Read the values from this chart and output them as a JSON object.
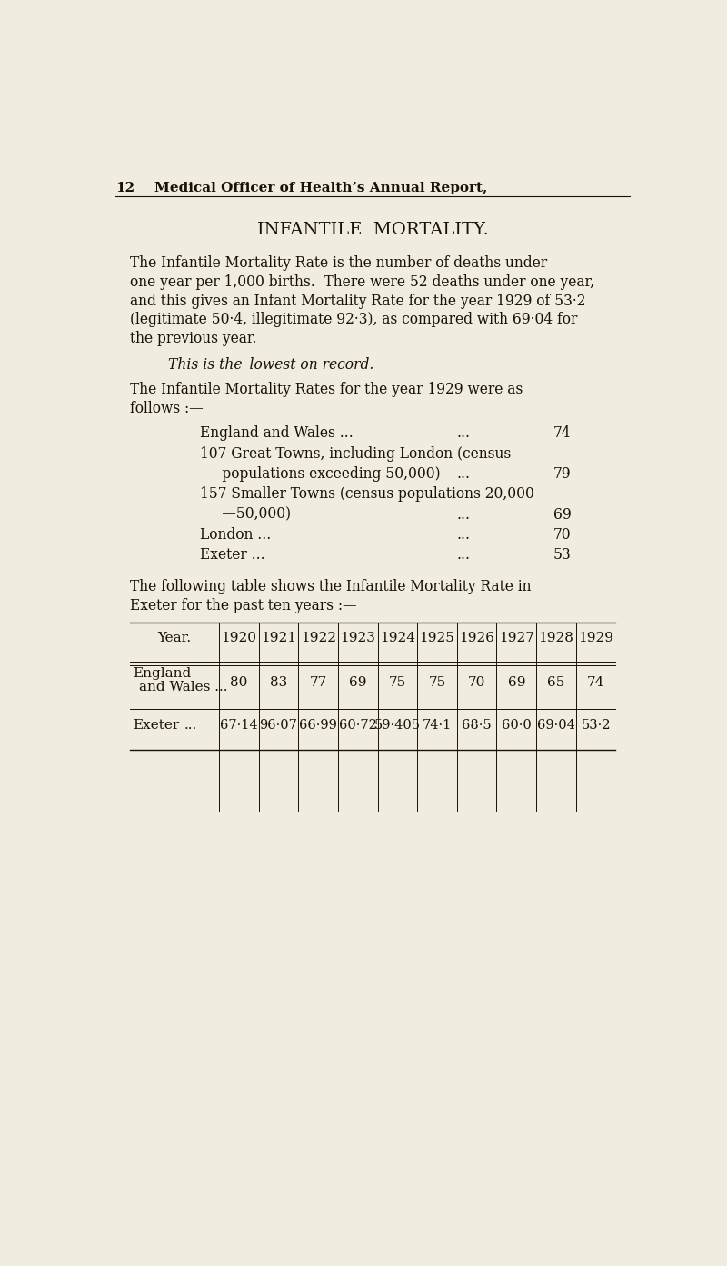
{
  "bg_color": "#f0ece0",
  "page_number": "12",
  "header_text": "Medical Officer of Health’s Annual Report,",
  "title": "INFANTILE  MORTALITY.",
  "para1_lines": [
    "The Infantile Mortality Rate is the number of deaths under",
    "one year per 1,000 births.  There were 52 deaths under one year,",
    "and this gives an Infant Mortality Rate for the year 1929 of 53·2",
    "(legitimate 50·4, illegitimate 92·3), as compared with 69·04 for",
    "the previous year."
  ],
  "italic_line": "This is the  lowest on record.",
  "para2_lines": [
    "The Infantile Mortality Rates for the year 1929 were as",
    "follows :—"
  ],
  "list_items": [
    {
      "label": "England and Wales ...",
      "dots": "...",
      "value": "74"
    },
    {
      "label": "107 Great Towns, including London (census",
      "dots": "",
      "value": ""
    },
    {
      "label": "     populations exceeding 50,000)",
      "dots": "...",
      "value": "79"
    },
    {
      "label": "157 Smaller Towns (census populations 20,000",
      "dots": "",
      "value": ""
    },
    {
      "label": "     —50,000)",
      "dots": "...",
      "value": "69"
    },
    {
      "label": "London ...",
      "dots": "...",
      "value": "70"
    },
    {
      "label": "Exeter ...",
      "dots": "...",
      "value": "53"
    }
  ],
  "para3_lines": [
    "The following table shows the Infantile Mortality Rate in",
    "Exeter for the past ten years :—"
  ],
  "table_years": [
    "1920",
    "1921",
    "1922",
    "1923",
    "1924",
    "1925",
    "1926",
    "1927",
    "1928",
    "1929"
  ],
  "table_row1_line1": "England",
  "table_row1_line2": "and Wales ...",
  "table_row1_values": [
    "80",
    "83",
    "77",
    "69",
    "75",
    "75",
    "70",
    "69",
    "65",
    "74"
  ],
  "table_row2_label": "Exeter",
  "table_row2_dots": "...",
  "table_row2_values": [
    "67·14",
    "96·07",
    "66·99",
    "60·72",
    "59·405",
    "74·1",
    "68·5",
    "60·0",
    "69·04",
    "53·2"
  ],
  "text_color": "#1a1008"
}
